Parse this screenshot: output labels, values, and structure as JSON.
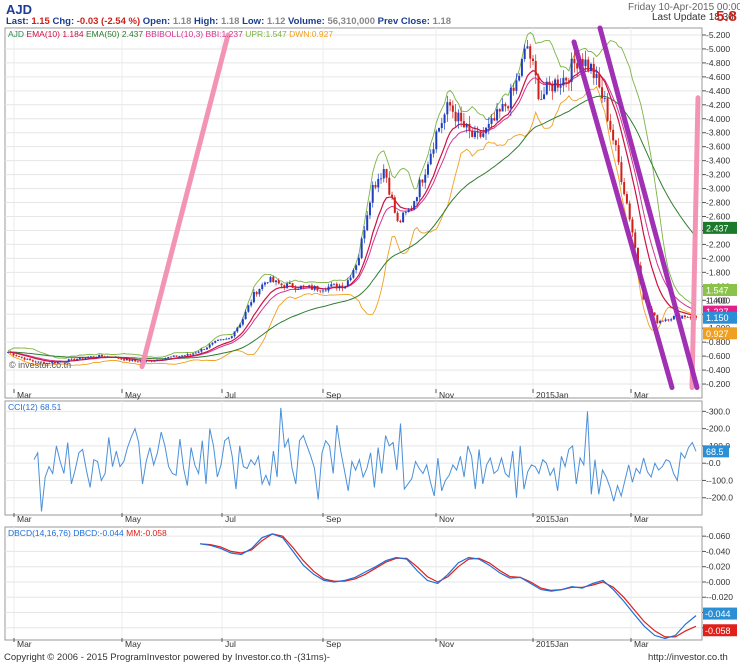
{
  "header": {
    "symbol": "AJD",
    "date_line": "Friday 10-Apr-2015 00:00",
    "last_update_label": "Last Update 18:30",
    "big_value": "5.8",
    "quote_parts": [
      {
        "text": "Last: ",
        "color": "#1a3d8f"
      },
      {
        "text": "1.15",
        "color": "#d0201a"
      },
      {
        "text": " Chg: ",
        "color": "#1a3d8f"
      },
      {
        "text": "-0.03 (-2.54 %)",
        "color": "#d0201a"
      },
      {
        "text": "  Open: ",
        "color": "#1a3d8f"
      },
      {
        "text": "1.18",
        "color": "#888888"
      },
      {
        "text": "  High: ",
        "color": "#1a3d8f"
      },
      {
        "text": "1.18",
        "color": "#888888"
      },
      {
        "text": "  Low: ",
        "color": "#1a3d8f"
      },
      {
        "text": "1.12",
        "color": "#888888"
      },
      {
        "text": "  Volume: ",
        "color": "#1a3d8f"
      },
      {
        "text": "56,310,000",
        "color": "#888888"
      },
      {
        "text": "  Prev Close: ",
        "color": "#1a3d8f"
      },
      {
        "text": "1.18",
        "color": "#888888"
      }
    ]
  },
  "price_legend": [
    {
      "text": "AJD ",
      "color": "#2e8b57"
    },
    {
      "text": "EMA(10) 1.184 ",
      "color": "#cc1144"
    },
    {
      "text": "EMA(50) 2.437 ",
      "color": "#2e7d32"
    },
    {
      "text": "BBIBOLL(10,3) BBI:1.237 ",
      "color": "#d6338f"
    },
    {
      "text": "UPR:1.547 ",
      "color": "#7cb342"
    },
    {
      "text": "DWN:0.927",
      "color": "#f0a020"
    }
  ],
  "watermark": "© investor.co.th",
  "cci_legend": "CCI(12) 68.51",
  "dbcd_legend_parts": [
    {
      "text": "DBCD(14,16,76) DBCD:-0.044 ",
      "color": "#1e6fd9"
    },
    {
      "text": "MM:-0.058",
      "color": "#e0201a"
    }
  ],
  "footer": {
    "copyright": "Copyright © 2006 - 2015 ProgramInvestor powered by Investor.co.th -(31ms)-",
    "url": "http://investor.co.th"
  },
  "chart_data": [
    {
      "type": "candlestick",
      "x_tick_labels": [
        "Mar",
        "May",
        "Jul",
        "Sep",
        "Nov",
        "2015Jan",
        "Mar"
      ],
      "ylim": [
        0,
        5.3
      ],
      "y_ticks": [
        "0.200",
        "0.400",
        "0.600",
        "0.800",
        "1.000",
        "1.200",
        "1.400",
        "1.600",
        "1.800",
        "2.000",
        "2.200",
        "2.400",
        "2.600",
        "2.800",
        "3.000",
        "3.200",
        "3.400",
        "3.600",
        "3.800",
        "4.000",
        "4.200",
        "4.400",
        "4.600",
        "4.800",
        "5.000",
        "5.200"
      ],
      "close_trace": [
        0.66,
        0.58,
        0.52,
        0.5,
        0.52,
        0.55,
        0.58,
        0.6,
        0.59,
        0.55,
        0.52,
        0.53,
        0.57,
        0.6,
        0.62,
        0.7,
        0.8,
        0.85,
        1.1,
        1.5,
        1.7,
        1.62,
        1.6,
        1.58,
        1.57,
        1.6,
        1.62,
        2.0,
        3.0,
        3.3,
        2.5,
        2.7,
        3.2,
        3.8,
        4.2,
        3.9,
        3.7,
        3.85,
        4.1,
        4.4,
        5.05,
        4.3,
        4.5,
        4.6,
        4.9,
        4.7,
        4.2,
        3.4,
        2.5,
        1.4,
        1.1,
        1.15,
        1.18,
        1.15
      ],
      "series": [
        {
          "name": "EMA(10)",
          "color": "#cc1144",
          "last": 1.184
        },
        {
          "name": "EMA(50)",
          "color": "#2e7d32",
          "last": 2.437
        },
        {
          "name": "BBI",
          "color": "#d6338f",
          "last": 1.237
        },
        {
          "name": "UPR",
          "color": "#7cb342",
          "last": 1.547
        },
        {
          "name": "DWN",
          "color": "#f0a020",
          "last": 0.927
        }
      ],
      "price_badge": {
        "value": "1.150",
        "color": "#2b8fd6"
      },
      "extra_label": "1.400",
      "badges": [
        {
          "value": "2.437",
          "color": "#1b7a2c"
        },
        {
          "value": "1.547",
          "color": "#8bc34a"
        },
        {
          "value": "1.184",
          "color": "#d32f2f"
        },
        {
          "value": "1.237",
          "color": "#e0218a"
        },
        {
          "value": "0.927",
          "color": "#f0a020"
        }
      ],
      "trendlines": [
        {
          "from": [
            "2014-05",
            0.45
          ],
          "to": [
            "2015-03",
            5.2
          ],
          "color": "#f48fb1"
        },
        {
          "from": [
            "2014-07",
            0.15
          ],
          "to": [
            "2015-03",
            4.3
          ],
          "color": "#f48fb1"
        },
        {
          "from": [
            "2015-01",
            5.1
          ],
          "to": [
            "2015-03",
            0.15
          ],
          "color": "#9c27b0"
        },
        {
          "from": [
            "2015-02",
            5.3
          ],
          "to": [
            "2015-04",
            0.15
          ],
          "color": "#9c27b0"
        }
      ]
    },
    {
      "type": "line",
      "name": "CCI(12)",
      "color": "#4a90d9",
      "y_ticks": [
        "300.0",
        "200.0",
        "100.0",
        "0.0",
        "-100.0",
        "-200.0"
      ],
      "ylim": [
        -300,
        360
      ],
      "last": "68.5",
      "values": [
        20,
        60,
        -280,
        -80,
        -20,
        -60,
        100,
        10,
        -60,
        120,
        -120,
        -40,
        60,
        80,
        -40,
        -140,
        20,
        10,
        -100,
        -60,
        150,
        -20,
        70,
        -20,
        10,
        90,
        150,
        200,
        120,
        -120,
        10,
        90,
        -10,
        60,
        180,
        100,
        -20,
        -60,
        -70,
        140,
        -30,
        -130,
        90,
        -10,
        -60,
        130,
        -120,
        200,
        100,
        -80,
        -10,
        130,
        150,
        40,
        -150,
        100,
        -20,
        -30,
        20,
        -10,
        40,
        -120,
        -70,
        -130,
        70,
        -80,
        320,
        90,
        140,
        -30,
        -120,
        130,
        160,
        100,
        40,
        -30,
        -210,
        60,
        130,
        100,
        -60,
        220,
        70,
        -40,
        -160,
        10,
        -40,
        20,
        -80,
        -30,
        60,
        -140,
        90,
        -60,
        160,
        100,
        120,
        -40,
        230,
        -150,
        -120,
        -90,
        10,
        -30,
        -60,
        -10,
        -110,
        -190,
        30,
        -160,
        -100,
        -70,
        -10,
        -40,
        40,
        -80,
        100,
        40,
        -150,
        80,
        -120,
        -10,
        30,
        -60,
        -40,
        30,
        -60,
        -80,
        70,
        -200,
        100,
        -150,
        -50,
        -10,
        -20,
        -60,
        20,
        0,
        -70,
        -30,
        -160,
        40,
        -20,
        80,
        100,
        -120,
        30,
        -10,
        300,
        -180,
        20,
        -180,
        -40,
        -80,
        -140,
        -220,
        -130,
        -190,
        -100,
        -10,
        -110,
        -30,
        -60,
        30,
        -50,
        -80,
        0,
        -40,
        -20,
        20,
        10,
        -60,
        -100,
        60,
        30,
        90,
        120,
        68.51
      ]
    },
    {
      "type": "line",
      "name": "DBCD(14,16,76)",
      "y_ticks": [
        "0.060",
        "0.040",
        "0.020",
        "0.000",
        "-0.020",
        "-0.040",
        "-0.060"
      ],
      "ylim": [
        -0.076,
        0.072
      ],
      "series": [
        {
          "name": "DBCD",
          "color": "#1e6fd9",
          "last": "-0.044",
          "values": [
            0.05,
            0.048,
            0.044,
            0.038,
            0.036,
            0.044,
            0.058,
            0.063,
            0.058,
            0.04,
            0.022,
            0.01,
            0.002,
            0.0,
            0.002,
            0.006,
            0.013,
            0.02,
            0.028,
            0.032,
            0.03,
            0.015,
            0.002,
            -0.002,
            0.01,
            0.025,
            0.032,
            0.03,
            0.022,
            0.012,
            0.005,
            0.006,
            -0.002,
            -0.01,
            -0.012,
            -0.01,
            -0.006,
            -0.008,
            -0.002,
            0.002,
            -0.01,
            -0.025,
            -0.042,
            -0.058,
            -0.07,
            -0.074,
            -0.07,
            -0.055,
            -0.044
          ]
        },
        {
          "name": "MM",
          "color": "#e0201a",
          "last": "-0.058",
          "values": [
            0.05,
            0.049,
            0.046,
            0.04,
            0.038,
            0.042,
            0.054,
            0.063,
            0.06,
            0.045,
            0.028,
            0.014,
            0.004,
            0.001,
            0.001,
            0.004,
            0.01,
            0.018,
            0.026,
            0.031,
            0.031,
            0.02,
            0.007,
            0.0,
            0.007,
            0.02,
            0.03,
            0.031,
            0.025,
            0.015,
            0.007,
            0.006,
            0.0,
            -0.008,
            -0.011,
            -0.01,
            -0.007,
            -0.007,
            -0.004,
            0.0,
            -0.007,
            -0.02,
            -0.036,
            -0.052,
            -0.064,
            -0.072,
            -0.072,
            -0.064,
            -0.058
          ]
        }
      ]
    }
  ]
}
